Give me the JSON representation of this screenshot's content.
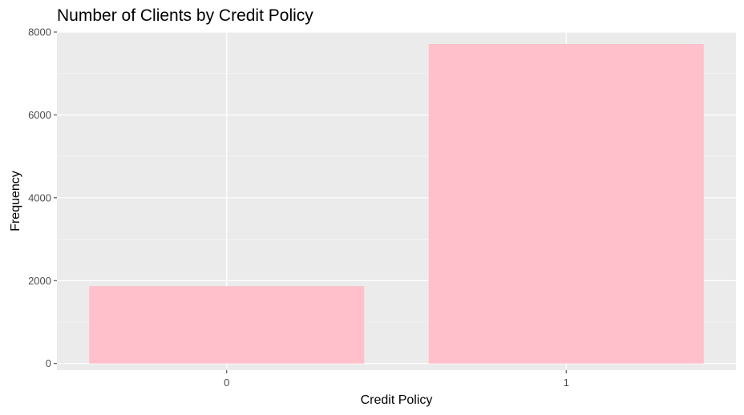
{
  "chart_data": {
    "type": "bar",
    "title": "Number of Clients by Credit Policy",
    "xlabel": "Credit Policy",
    "ylabel": "Frequency",
    "categories": [
      "0",
      "1"
    ],
    "values": [
      1868,
      7710
    ],
    "ylim": [
      -160,
      8000
    ],
    "yticks": [
      0,
      2000,
      4000,
      6000,
      8000
    ],
    "ytick_labels": [
      "0",
      "2000",
      "4000",
      "6000",
      "8000"
    ],
    "grid": true,
    "legend": "none",
    "colors": {
      "bar": "#FFC0CB",
      "panel_background": "#EBEBEB",
      "grid_major": "#FFFFFF",
      "grid_minor": "#F5F5F5"
    }
  }
}
